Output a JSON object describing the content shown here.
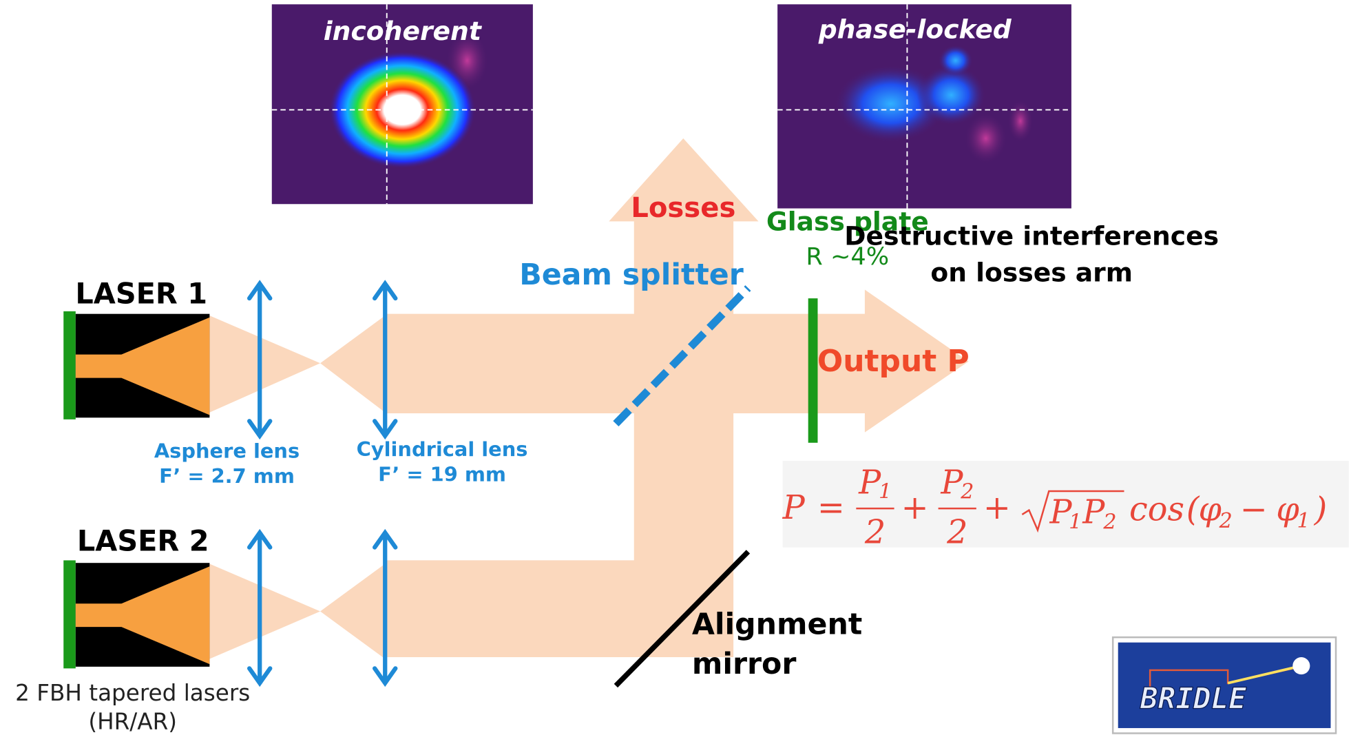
{
  "images": {
    "left": "incoherent",
    "right": "phase-locked"
  },
  "labels": {
    "losses": "Losses",
    "glass_plate": "Glass plate",
    "reflectance": "R ~4%",
    "destructive": [
      "Destructive interferences",
      "on losses arm"
    ],
    "beam_splitter": "Beam splitter",
    "laser1": "LASER 1",
    "laser2": "LASER 2",
    "asphere": [
      "Asphere lens",
      "F’ = 2.7 mm"
    ],
    "cylindrical": [
      "Cylindrical lens",
      "F’ = 19 mm"
    ],
    "output": "Output P",
    "mirror": [
      "Alignment",
      "mirror"
    ],
    "caption": [
      "2 FBH tapered lasers",
      "(HR/AR)"
    ]
  },
  "formula": {
    "lhs": "P",
    "eq": "=",
    "plus": "+",
    "num1": "P",
    "sub1": "1",
    "den": "2",
    "num2": "P",
    "sub2": "2",
    "sqrt_a": "P",
    "sqrt_b": "P",
    "cos": "cos",
    "open": "(",
    "phi": "φ",
    "minus": "−",
    "close": ")"
  },
  "logo": "BRIDLE"
}
